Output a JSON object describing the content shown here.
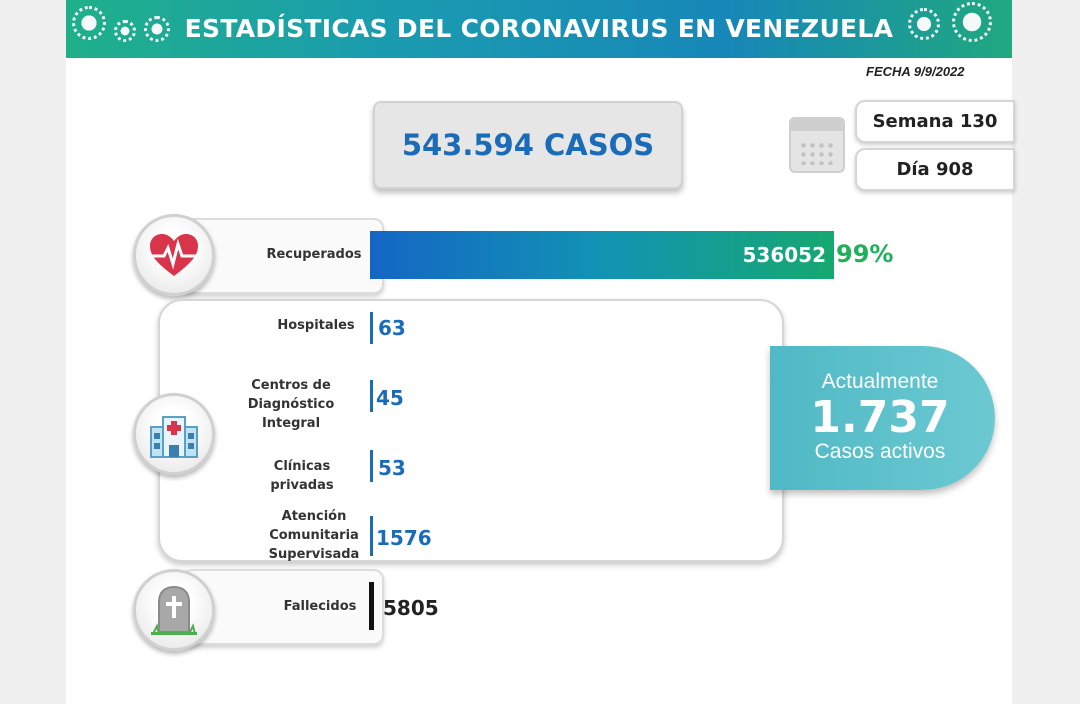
{
  "header": {
    "title": "ESTADÍSTICAS DEL CORONAVIRUS EN VENEZUELA",
    "date": "FECHA 9/9/2022",
    "banner_colors": [
      "#1fb08a",
      "#1a9bb0",
      "#1787b8"
    ]
  },
  "summary": {
    "cases_label": "543.594 CASOS",
    "week_label": "Semana 130",
    "day_label": "Día 908"
  },
  "recovered": {
    "label": "Recuperados",
    "value": "536052",
    "percent": "99%",
    "icon": "heart-pulse-icon",
    "color": "#1fb05a"
  },
  "hospitalization": {
    "icon": "hospital-icon",
    "rows": [
      {
        "label": "Hospitales",
        "value": "63"
      },
      {
        "label": "Centros de Diagnóstico Integral",
        "value": "45"
      },
      {
        "label": "Clínicas privadas",
        "value": "53"
      },
      {
        "label": "Atención Comunitaria Supervisada",
        "value": "1576"
      }
    ],
    "color": "#1a6bb8"
  },
  "active": {
    "line1": "Actualmente",
    "number": "1.737",
    "line3": "Casos activos",
    "color": "#4fb9c5"
  },
  "deaths": {
    "label": "Fallecidos",
    "value": "5805",
    "icon": "tombstone-icon"
  }
}
